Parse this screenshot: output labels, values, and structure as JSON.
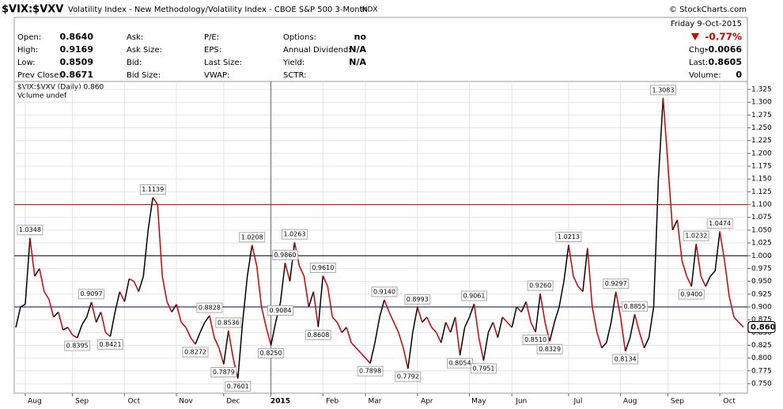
{
  "header": {
    "symbol": "$VIX:$VXV",
    "description": "Volatility Index - New Methodology/Volatility Index - CBOE S&P 500 3-Month",
    "exchange": "INDX",
    "copyright": "© StockCharts.com"
  },
  "quote": {
    "columns": [
      [
        {
          "label": "Open:",
          "value": "0.8640"
        },
        {
          "label": "High:",
          "value": "0.9169"
        },
        {
          "label": "Low:",
          "value": "0.8509"
        },
        {
          "label": "Prev Close:",
          "value": "0.8671"
        }
      ],
      [
        {
          "label": "Ask:"
        },
        {
          "label": "Ask Size:"
        },
        {
          "label": "Bid:"
        },
        {
          "label": "Bid Size:"
        }
      ],
      [
        {
          "label": "P/E:"
        },
        {
          "label": "EPS:"
        },
        {
          "label": "Last Size:"
        },
        {
          "label": "VWAP:"
        }
      ],
      [
        {
          "label": "Options:",
          "value": "no"
        },
        {
          "label": "Annual Dividend:",
          "value": "N/A"
        },
        {
          "label": "Yield:",
          "value": "N/A"
        },
        {
          "label": "SCTR:"
        }
      ]
    ],
    "session": {
      "date": "Friday  9-Oct-2015",
      "change_pct": "-0.77%",
      "rows": [
        {
          "label": "Chg:",
          "value": "-0.0066"
        },
        {
          "label": "Last:",
          "value": "0.8605"
        },
        {
          "label": "Volume:",
          "value": "0"
        }
      ]
    }
  },
  "chart_data": {
    "type": "line",
    "legend": "$VIX:$VXV (Daily) 0.860",
    "volume_legend": "Volume undef",
    "last_label": "0.860",
    "up_color": "#000000",
    "down_color": "#cc0000",
    "grid": true,
    "reference_lines": [
      {
        "value": 1.1,
        "color": "#cc0000"
      },
      {
        "value": 1.0,
        "color": "#000000"
      },
      {
        "value": 0.9,
        "color": "#000080"
      }
    ],
    "ylim": [
      0.7314,
      1.3405
    ],
    "yticks": [
      {
        "value": 0.75,
        "label": "0.750"
      },
      {
        "value": 0.775,
        "label": "0.775"
      },
      {
        "value": 0.8,
        "label": "0.800"
      },
      {
        "value": 0.825,
        "label": "0.825"
      },
      {
        "value": 0.85,
        "label": "0.850"
      },
      {
        "value": 0.875,
        "label": "0.875"
      },
      {
        "value": 0.9,
        "label": "0.900"
      },
      {
        "value": 0.925,
        "label": "0.925"
      },
      {
        "value": 0.95,
        "label": "0.950"
      },
      {
        "value": 0.975,
        "label": "0.975"
      },
      {
        "value": 1.0,
        "label": "1.000"
      },
      {
        "value": 1.025,
        "label": "1.025"
      },
      {
        "value": 1.05,
        "label": "1.050"
      },
      {
        "value": 1.075,
        "label": "1.075"
      },
      {
        "value": 1.1,
        "label": "1.100"
      },
      {
        "value": 1.125,
        "label": "1.125"
      },
      {
        "value": 1.15,
        "label": "1.150"
      },
      {
        "value": 1.175,
        "label": "1.175"
      },
      {
        "value": 1.2,
        "label": "1.200"
      },
      {
        "value": 1.225,
        "label": "1.225"
      },
      {
        "value": 1.25,
        "label": "1.250"
      },
      {
        "value": 1.275,
        "label": "1.275"
      },
      {
        "value": 1.3,
        "label": "1.300"
      },
      {
        "value": 1.325,
        "label": "1.325"
      }
    ],
    "categories": [
      null,
      null,
      null,
      null,
      "Aug",
      null,
      null,
      null,
      null,
      null,
      null,
      null,
      null,
      null,
      "Sep",
      null,
      null,
      null,
      null,
      null,
      null,
      null,
      null,
      null,
      null,
      "Oct",
      null,
      null,
      null,
      null,
      null,
      null,
      null,
      null,
      null,
      null,
      "Nov",
      null,
      null,
      null,
      null,
      null,
      null,
      null,
      null,
      null,
      "Dec",
      null,
      null,
      null,
      null,
      null,
      null,
      null,
      null,
      null,
      "2015",
      null,
      null,
      null,
      null,
      null,
      null,
      null,
      null,
      null,
      null,
      "Feb",
      null,
      null,
      null,
      null,
      null,
      null,
      null,
      null,
      "Mar",
      null,
      null,
      null,
      null,
      null,
      null,
      null,
      null,
      null,
      null,
      "Apr",
      null,
      null,
      null,
      null,
      null,
      null,
      null,
      null,
      null,
      null,
      "May",
      null,
      null,
      null,
      null,
      null,
      null,
      null,
      null,
      "Jun",
      null,
      null,
      null,
      null,
      null,
      null,
      null,
      null,
      null,
      null,
      null,
      "Jul",
      null,
      null,
      null,
      null,
      null,
      null,
      null,
      null,
      null,
      null,
      "Aug",
      null,
      null,
      null,
      null,
      null,
      null,
      null,
      null,
      null,
      "Sep",
      null,
      null,
      null,
      null,
      null,
      null,
      null,
      null,
      null,
      null,
      "Oct",
      null,
      null,
      null
    ],
    "values": [
      0.86,
      0.9,
      0.905,
      1.0348,
      0.96,
      0.975,
      0.93,
      0.915,
      0.88,
      0.89,
      0.855,
      0.86,
      0.845,
      0.8395,
      0.865,
      0.88,
      0.9097,
      0.87,
      0.89,
      0.85,
      0.8421,
      0.89,
      0.93,
      0.91,
      0.955,
      0.95,
      0.93,
      0.96,
      1.05,
      1.1139,
      1.1,
      0.96,
      0.91,
      0.89,
      0.905,
      0.87,
      0.86,
      0.84,
      0.8272,
      0.85,
      0.87,
      0.8828,
      0.84,
      0.82,
      0.7879,
      0.8536,
      0.8,
      0.7601,
      0.87,
      0.96,
      1.0208,
      0.98,
      0.9,
      0.86,
      0.825,
      0.87,
      0.9084,
      0.986,
      0.95,
      1.0263,
      0.98,
      0.96,
      0.9,
      0.93,
      0.8608,
      0.961,
      0.94,
      0.88,
      0.87,
      0.85,
      0.86,
      0.83,
      0.82,
      0.81,
      0.8,
      0.7898,
      0.83,
      0.88,
      0.914,
      0.89,
      0.87,
      0.85,
      0.82,
      0.7792,
      0.85,
      0.8993,
      0.87,
      0.88,
      0.86,
      0.85,
      0.83,
      0.87,
      0.85,
      0.88,
      0.8054,
      0.86,
      0.88,
      0.9061,
      0.84,
      0.7951,
      0.85,
      0.87,
      0.84,
      0.88,
      0.87,
      0.86,
      0.9,
      0.89,
      0.91,
      0.87,
      0.851,
      0.926,
      0.87,
      0.8329,
      0.87,
      0.9,
      0.95,
      1.0213,
      0.96,
      0.94,
      0.93,
      1.015,
      0.9,
      0.85,
      0.82,
      0.83,
      0.87,
      0.9297,
      0.88,
      0.8134,
      0.84,
      0.8855,
      0.85,
      0.82,
      0.84,
      0.9,
      1.15,
      1.3083,
      1.18,
      1.05,
      1.07,
      0.99,
      0.96,
      0.94,
      1.0232,
      0.96,
      0.94,
      0.96,
      0.97,
      1.0474,
      0.99,
      0.92,
      0.88,
      0.87,
      0.8605
    ],
    "value_labels": [
      null,
      null,
      null,
      "1.0348",
      null,
      null,
      null,
      null,
      null,
      null,
      null,
      null,
      null,
      "0.8395",
      null,
      null,
      "0.9097",
      null,
      null,
      null,
      "0.8421",
      null,
      null,
      null,
      null,
      null,
      null,
      null,
      null,
      "1.1139",
      null,
      null,
      null,
      null,
      null,
      null,
      null,
      null,
      "0.8272",
      null,
      null,
      "0.8828",
      null,
      null,
      "0.7879",
      "0.8536",
      null,
      "0.7601",
      null,
      null,
      "1.0208",
      null,
      null,
      null,
      "0.8250",
      null,
      "0.9084",
      "0.9860",
      null,
      "1.0263",
      null,
      null,
      null,
      null,
      "0.8608",
      "0.9610",
      null,
      null,
      null,
      null,
      null,
      null,
      null,
      null,
      null,
      "0.7898",
      null,
      null,
      "0.9140",
      null,
      null,
      null,
      null,
      "0.7792",
      null,
      "0.8993",
      null,
      null,
      null,
      null,
      null,
      null,
      null,
      null,
      "0.8054",
      null,
      null,
      "0.9061",
      null,
      "0.7951",
      null,
      null,
      null,
      null,
      null,
      null,
      null,
      null,
      null,
      null,
      "0.8510",
      "0.9260",
      null,
      "0.8329",
      null,
      null,
      null,
      "1.0213",
      null,
      null,
      null,
      null,
      null,
      null,
      null,
      null,
      null,
      "0.9297",
      null,
      "0.8134",
      null,
      "0.8855",
      null,
      null,
      null,
      null,
      null,
      "1.3083",
      null,
      null,
      null,
      null,
      null,
      "0.9400",
      "1.0232",
      null,
      null,
      null,
      null,
      "1.0474",
      null,
      null,
      null,
      null,
      null
    ]
  }
}
